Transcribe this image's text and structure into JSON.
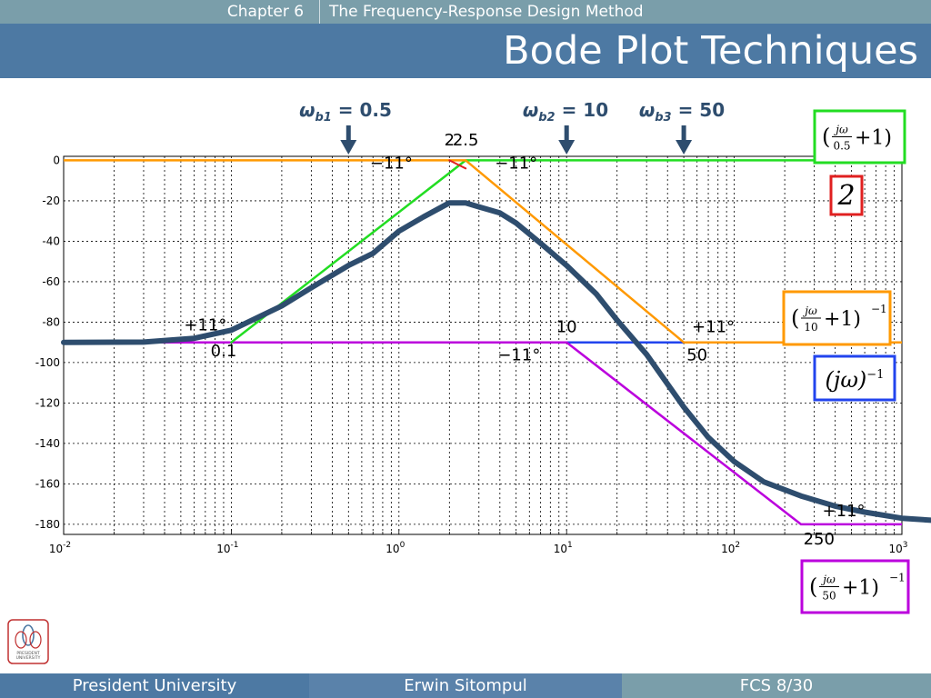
{
  "header": {
    "chapter": "Chapter 6",
    "chapter_title": "The Frequency-Response Design Method",
    "title": "Bode Plot Techniques"
  },
  "footer": {
    "left": "President University",
    "center": "Erwin Sitompul",
    "right": "FCS 8/30"
  },
  "logo": {
    "icon": "president-university-logo-icon",
    "text_line1": "PRESIDENT",
    "text_line2": "UNIVERSITY"
  },
  "colors": {
    "topbar": "#7a9eaa",
    "titlebar": "#4d79a3",
    "total": "#2e4d6e",
    "gain": "#e02020",
    "zero_05": "#22dd22",
    "pole_10": "#ff9900",
    "integrator": "#2244ee",
    "pole_50": "#bb00dd",
    "arrow": "#2e4d6e"
  },
  "breakpoints": [
    {
      "sym": "ω",
      "sub": "b1",
      "value": "= 0.5",
      "freq": 0.5
    },
    {
      "sym": "ω",
      "sub": "b2",
      "value": "= 10",
      "freq": 10
    },
    {
      "sym": "ω",
      "sub": "b3",
      "value": "= 50",
      "freq": 50
    }
  ],
  "legend_boxes": [
    {
      "color": "#22dd22",
      "parts": [
        "(",
        "jω/0.5",
        "+1)"
      ],
      "exp": ""
    },
    {
      "color": "#e02020",
      "parts": [
        "2"
      ],
      "exp": ""
    },
    {
      "color": "#ff9900",
      "parts": [
        "(",
        "jω/10",
        "+1)"
      ],
      "exp": "−1"
    },
    {
      "color": "#2244ee",
      "parts": [
        "(jω)"
      ],
      "exp": "−1"
    },
    {
      "color": "#bb00dd",
      "parts": [
        "(",
        "jω/50",
        "+1)"
      ],
      "exp": "−1"
    }
  ],
  "annotations": [
    {
      "text": "2",
      "freq": 2.0,
      "db": 7.5
    },
    {
      "text": "2.5",
      "freq": 2.5,
      "db": 7.5
    },
    {
      "text": "−11°",
      "freq": 0.9,
      "db": -4
    },
    {
      "text": "−11°",
      "freq": 5.0,
      "db": -4
    },
    {
      "text": "+11°",
      "freq": 0.07,
      "db": -84
    },
    {
      "text": "0.1",
      "freq": 0.09,
      "db": -97
    },
    {
      "text": "10",
      "freq": 10,
      "db": -85
    },
    {
      "text": "−11°",
      "freq": 5.2,
      "db": -99
    },
    {
      "text": "+11°",
      "freq": 75,
      "db": -85
    },
    {
      "text": "50",
      "freq": 60,
      "db": -99
    },
    {
      "text": "+11°",
      "freq": 450,
      "db": -176
    },
    {
      "text": "250",
      "freq": 320,
      "db": -190
    }
  ],
  "chart_data": {
    "type": "line",
    "title": "",
    "xlabel": "",
    "ylabel": "",
    "xscale": "log",
    "xlim": [
      0.01,
      1000
    ],
    "ylim": [
      -185,
      2
    ],
    "xticks": [
      0.01,
      0.1,
      1,
      10,
      100,
      1000
    ],
    "xtick_labels": [
      {
        "base": "10",
        "exp": "-2"
      },
      {
        "base": "10",
        "exp": "-1"
      },
      {
        "base": "10",
        "exp": "0"
      },
      {
        "base": "10",
        "exp": "1"
      },
      {
        "base": "10",
        "exp": "2"
      },
      {
        "base": "10",
        "exp": "3"
      }
    ],
    "yticks": [
      0,
      -20,
      -40,
      -60,
      -80,
      -100,
      -120,
      -140,
      -160,
      -180
    ],
    "grid": "dashed",
    "series": [
      {
        "key": "total",
        "color": "#2e4d6e",
        "width": 6,
        "x": [
          0.01,
          0.03,
          0.06,
          0.1,
          0.2,
          0.3,
          0.5,
          0.7,
          1,
          1.4,
          2,
          2.5,
          3,
          4,
          5,
          7,
          10,
          15,
          20,
          30,
          50,
          70,
          100,
          150,
          250,
          400,
          600,
          1000,
          1500
        ],
        "y": [
          -90,
          -89.9,
          -88,
          -84,
          -72,
          -63,
          -52,
          -46,
          -35,
          -28,
          -21,
          -21,
          -23,
          -26,
          -31,
          -41,
          -52,
          -66,
          -79,
          -96,
          -122,
          -137,
          -149,
          -159,
          -166,
          -171,
          -174,
          -177,
          -178
        ]
      },
      {
        "key": "zero_05",
        "color": "#22dd22",
        "width": 2.5,
        "x": [
          0.1,
          2.5,
          1000
        ],
        "y": [
          -90,
          0,
          0
        ]
      },
      {
        "key": "pole_10",
        "color": "#ff9900",
        "width": 2.5,
        "x": [
          0.01,
          2.5,
          50,
          1000
        ],
        "y": [
          0,
          0,
          -90,
          -90
        ]
      },
      {
        "key": "gain",
        "color": "#e02020",
        "width": 2,
        "x": [
          2,
          2.5
        ],
        "y": [
          0,
          -4
        ]
      },
      {
        "key": "integrator",
        "color": "#2244ee",
        "width": 2.5,
        "x": [
          0.01,
          1000
        ],
        "y": [
          -90,
          -90
        ]
      },
      {
        "key": "pole_50",
        "color": "#bb00dd",
        "width": 2.5,
        "x": [
          0.01,
          10,
          250,
          1000
        ],
        "y": [
          -90,
          -90,
          -180,
          -180
        ]
      }
    ]
  }
}
